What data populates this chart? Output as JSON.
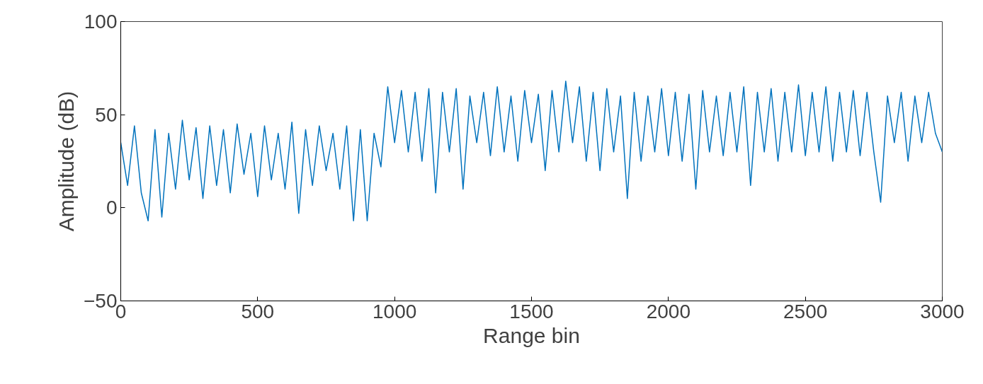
{
  "chart_data": {
    "type": "line",
    "xlabel": "Range bin",
    "ylabel": "Amplitude (dB)",
    "xlim": [
      0,
      3000
    ],
    "ylim": [
      -50,
      100
    ],
    "xticks": [
      0,
      500,
      1000,
      1500,
      2000,
      2500,
      3000
    ],
    "yticks": [
      -50,
      0,
      50,
      100
    ],
    "grid": false,
    "series": [
      {
        "color": "#0072bd",
        "x": [
          0,
          25,
          50,
          75,
          100,
          125,
          150,
          175,
          200,
          225,
          250,
          275,
          300,
          325,
          350,
          375,
          400,
          425,
          450,
          475,
          500,
          525,
          550,
          575,
          600,
          625,
          650,
          675,
          700,
          725,
          750,
          775,
          800,
          825,
          850,
          875,
          900,
          925,
          950,
          975,
          1000,
          1025,
          1050,
          1075,
          1100,
          1125,
          1150,
          1175,
          1200,
          1225,
          1250,
          1275,
          1300,
          1325,
          1350,
          1375,
          1400,
          1425,
          1450,
          1475,
          1500,
          1525,
          1550,
          1575,
          1600,
          1625,
          1650,
          1675,
          1700,
          1725,
          1750,
          1775,
          1800,
          1825,
          1850,
          1875,
          1900,
          1925,
          1950,
          1975,
          2000,
          2025,
          2050,
          2075,
          2100,
          2125,
          2150,
          2175,
          2200,
          2225,
          2250,
          2275,
          2300,
          2325,
          2350,
          2375,
          2400,
          2425,
          2450,
          2475,
          2500,
          2525,
          2550,
          2575,
          2600,
          2625,
          2650,
          2675,
          2700,
          2725,
          2750,
          2775,
          2800,
          2825,
          2850,
          2875,
          2900,
          2925,
          2950,
          2975,
          3000
        ],
        "values": [
          35,
          12,
          44,
          8,
          -7,
          42,
          -5,
          40,
          10,
          47,
          15,
          43,
          5,
          44,
          12,
          42,
          8,
          45,
          18,
          40,
          6,
          44,
          15,
          40,
          10,
          46,
          -3,
          42,
          12,
          44,
          20,
          40,
          10,
          44,
          -7,
          42,
          -7,
          40,
          22,
          65,
          35,
          63,
          30,
          62,
          25,
          64,
          8,
          62,
          30,
          64,
          10,
          60,
          35,
          62,
          28,
          65,
          30,
          60,
          25,
          63,
          35,
          61,
          20,
          63,
          30,
          68,
          35,
          65,
          25,
          62,
          20,
          64,
          30,
          60,
          5,
          62,
          25,
          60,
          30,
          64,
          28,
          62,
          25,
          61,
          10,
          63,
          30,
          60,
          28,
          62,
          30,
          65,
          12,
          62,
          30,
          64,
          25,
          62,
          30,
          66,
          28,
          62,
          30,
          65,
          25,
          62,
          30,
          63,
          28,
          62,
          30,
          3,
          60,
          35,
          62,
          25,
          60,
          35,
          62,
          40,
          30
        ]
      }
    ]
  }
}
